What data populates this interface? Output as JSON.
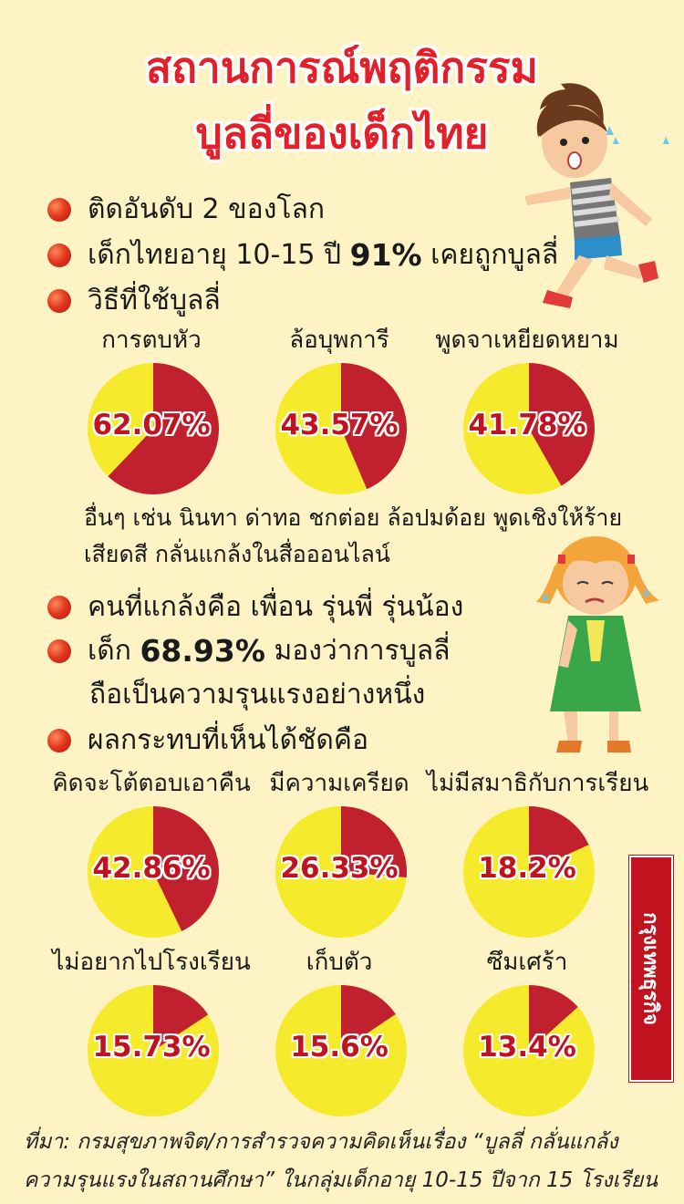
{
  "title": {
    "line1": "สถานการณ์พฤติกรรม",
    "line2": "บูลลี่ของเด็กไทย"
  },
  "bullets": {
    "rank": "ติดอันดับ 2 ของโลก",
    "age_prefix": "เด็กไทยอายุ 10-15 ปี",
    "age_pct": "91%",
    "age_suffix": "เคยถูกบูลลี่",
    "methods": "วิธีที่ใช้บูลลี่",
    "who": "คนที่แกล้งคือ เพื่อน รุ่นพี่ รุ่นน้อง",
    "view_prefix": "เด็ก",
    "view_pct": "68.93%",
    "view_suffix": "มองว่าการบูลลี่",
    "view_line2": "ถือเป็นความรุนแรงอย่างหนึ่ง",
    "effects": "ผลกระทบที่เห็นได้ชัดคือ"
  },
  "other_methods": {
    "line1": "อื่นๆ เช่น นินทา ด่าทอ ชกต่อย ล้อปมด้อย พูดเชิงให้ร้าย",
    "line2": "เสียดสี กลั่นแกล้งในสื่อออนไลน์"
  },
  "colors": {
    "background": "#fdf3c4",
    "title_red": "#e3202a",
    "pie_red": "#c1202f",
    "pie_yellow": "#f5ea2c"
  },
  "chart_data": [
    {
      "type": "pie",
      "slices": [
        {
          "label": "การตบหัว",
          "value": 62.07,
          "text": "62.07%"
        },
        {
          "label": "ล้อบุพการี",
          "value": 43.57,
          "text": "43.57%"
        },
        {
          "label": "พูดจาเหยียดหยาม",
          "value": 41.78,
          "text": "41.78%"
        }
      ]
    },
    {
      "type": "pie",
      "slices": [
        {
          "label": "คิดจะโต้ตอบเอาคืน",
          "value": 42.86,
          "text": "42.86%"
        },
        {
          "label": "มีความเครียด",
          "value": 26.33,
          "text": "26.33%"
        },
        {
          "label": "ไม่มีสมาธิกับการเรียน",
          "value": 18.2,
          "text": "18.2%"
        },
        {
          "label": "ไม่อยากไปโรงเรียน",
          "value": 15.73,
          "text": "15.73%"
        },
        {
          "label": "เก็บตัว",
          "value": 15.6,
          "text": "15.6%"
        },
        {
          "label": "ซึมเศร้า",
          "value": 13.4,
          "text": "13.4%"
        }
      ]
    }
  ],
  "source": {
    "line1": "ที่มา: กรมสุขภาพจิต/การสำรวจความคิดเห็นเรื่อง “บูลลี่ กลั่นแกล้ง",
    "line2": "ความรุนแรงในสถานศึกษา” ในกลุ่มเด็กอายุ 10-15 ปีจาก 15 โรงเรียน"
  },
  "brand": "กรุงเทพธุรกิจ"
}
